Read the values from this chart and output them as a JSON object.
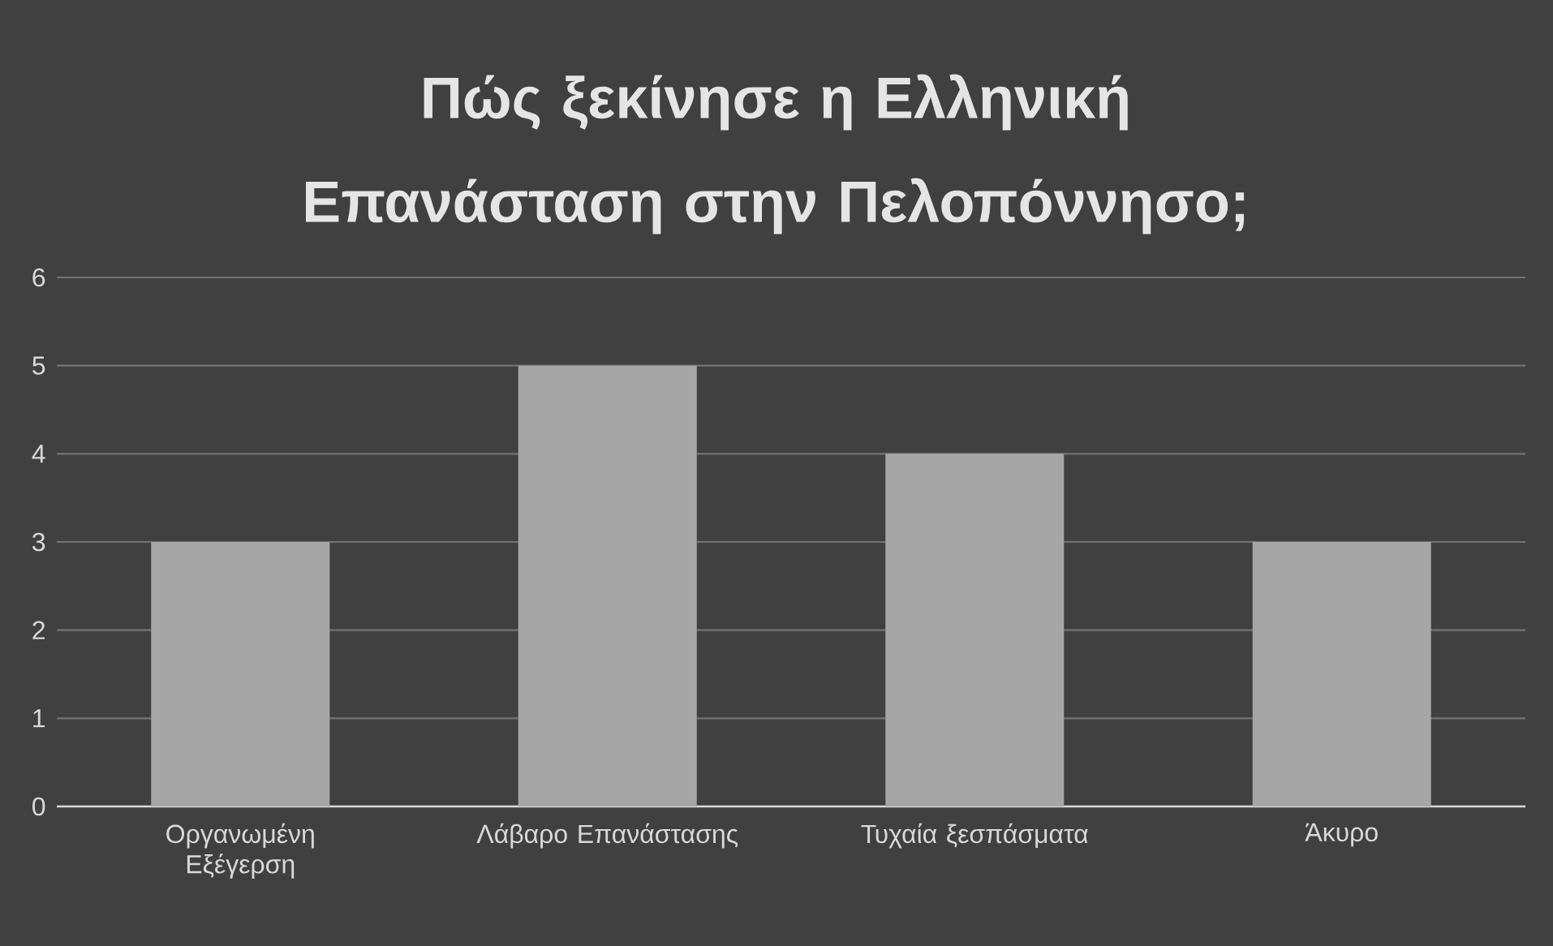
{
  "chart_data": {
    "type": "bar",
    "title": "Πώς ξεκίνησε η Ελληνική Επανάσταση στην Πελοπόννησο;",
    "categories": [
      "Οργανωμένη Εξέγερση",
      "Λάβαρο Επανάστασης",
      "Τυχαία ξεσπάσματα",
      "Άκυρο"
    ],
    "values": [
      3,
      5,
      4,
      3
    ],
    "color": "#a6a6a6",
    "ylim": [
      0,
      6
    ],
    "yticks": [
      0,
      1,
      2,
      3,
      4,
      5,
      6
    ],
    "grid": "y"
  }
}
